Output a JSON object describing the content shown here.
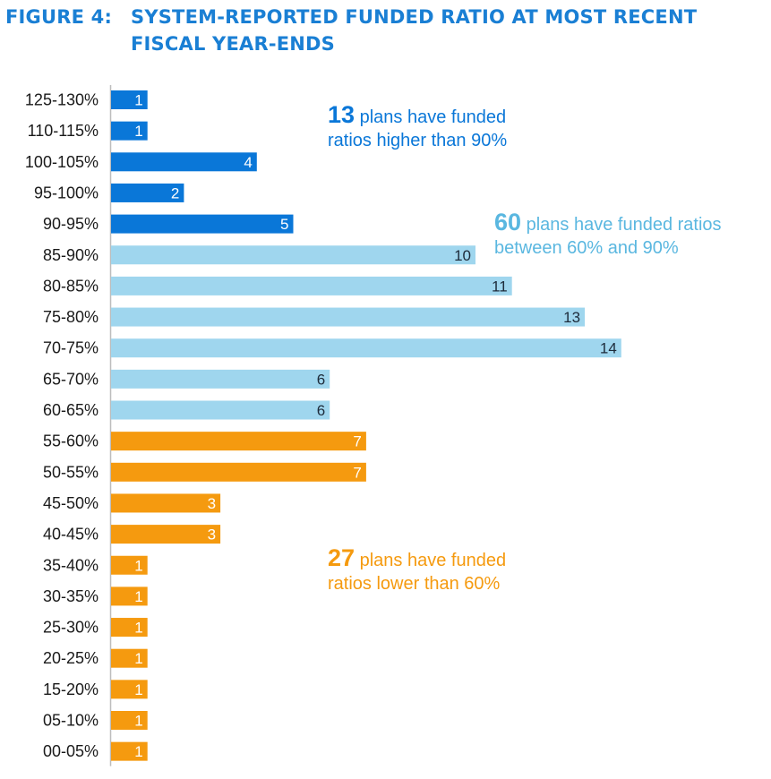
{
  "figure": {
    "prefix": "FIGURE 4:",
    "title_line1": "SYSTEM-REPORTED FUNDED RATIO AT MOST RECENT",
    "title_line2": "FISCAL YEAR-ENDS"
  },
  "colors": {
    "high": "#0a77d8",
    "mid": "#9fd6ee",
    "low": "#f59a0f",
    "title": "#1a7fd4",
    "mid_text": "#5ab7e0",
    "axis": "#bdbdbd"
  },
  "annotations": [
    {
      "big": "13",
      "line1": "plans have funded",
      "line2": "ratios higher than 90%",
      "group": "high"
    },
    {
      "big": "60",
      "line1": "plans have funded ratios",
      "line2": "between 60% and 90%",
      "group": "mid"
    },
    {
      "big": "27",
      "line1": "plans have funded",
      "line2": "ratios lower than 60%",
      "group": "low"
    }
  ],
  "chart_data": {
    "type": "bar",
    "orientation": "horizontal",
    "title": "SYSTEM-REPORTED FUNDED RATIO AT MOST RECENT FISCAL YEAR-ENDS",
    "categories": [
      "125-130%",
      "110-115%",
      "100-105%",
      "95-100%",
      "90-95%",
      "85-90%",
      "80-85%",
      "75-80%",
      "70-75%",
      "65-70%",
      "60-65%",
      "55-60%",
      "50-55%",
      "45-50%",
      "40-45%",
      "35-40%",
      "30-35%",
      "25-30%",
      "20-25%",
      "15-20%",
      "05-10%",
      "00-05%"
    ],
    "values": [
      1,
      1,
      4,
      2,
      5,
      10,
      11,
      13,
      14,
      6,
      6,
      7,
      7,
      3,
      3,
      1,
      1,
      1,
      1,
      1,
      1,
      1
    ],
    "groups": [
      "high",
      "high",
      "high",
      "high",
      "high",
      "mid",
      "mid",
      "mid",
      "mid",
      "mid",
      "mid",
      "low",
      "low",
      "low",
      "low",
      "low",
      "low",
      "low",
      "low",
      "low",
      "low",
      "low"
    ],
    "xlim": [
      0,
      14
    ],
    "grid": false,
    "legend": "none"
  }
}
